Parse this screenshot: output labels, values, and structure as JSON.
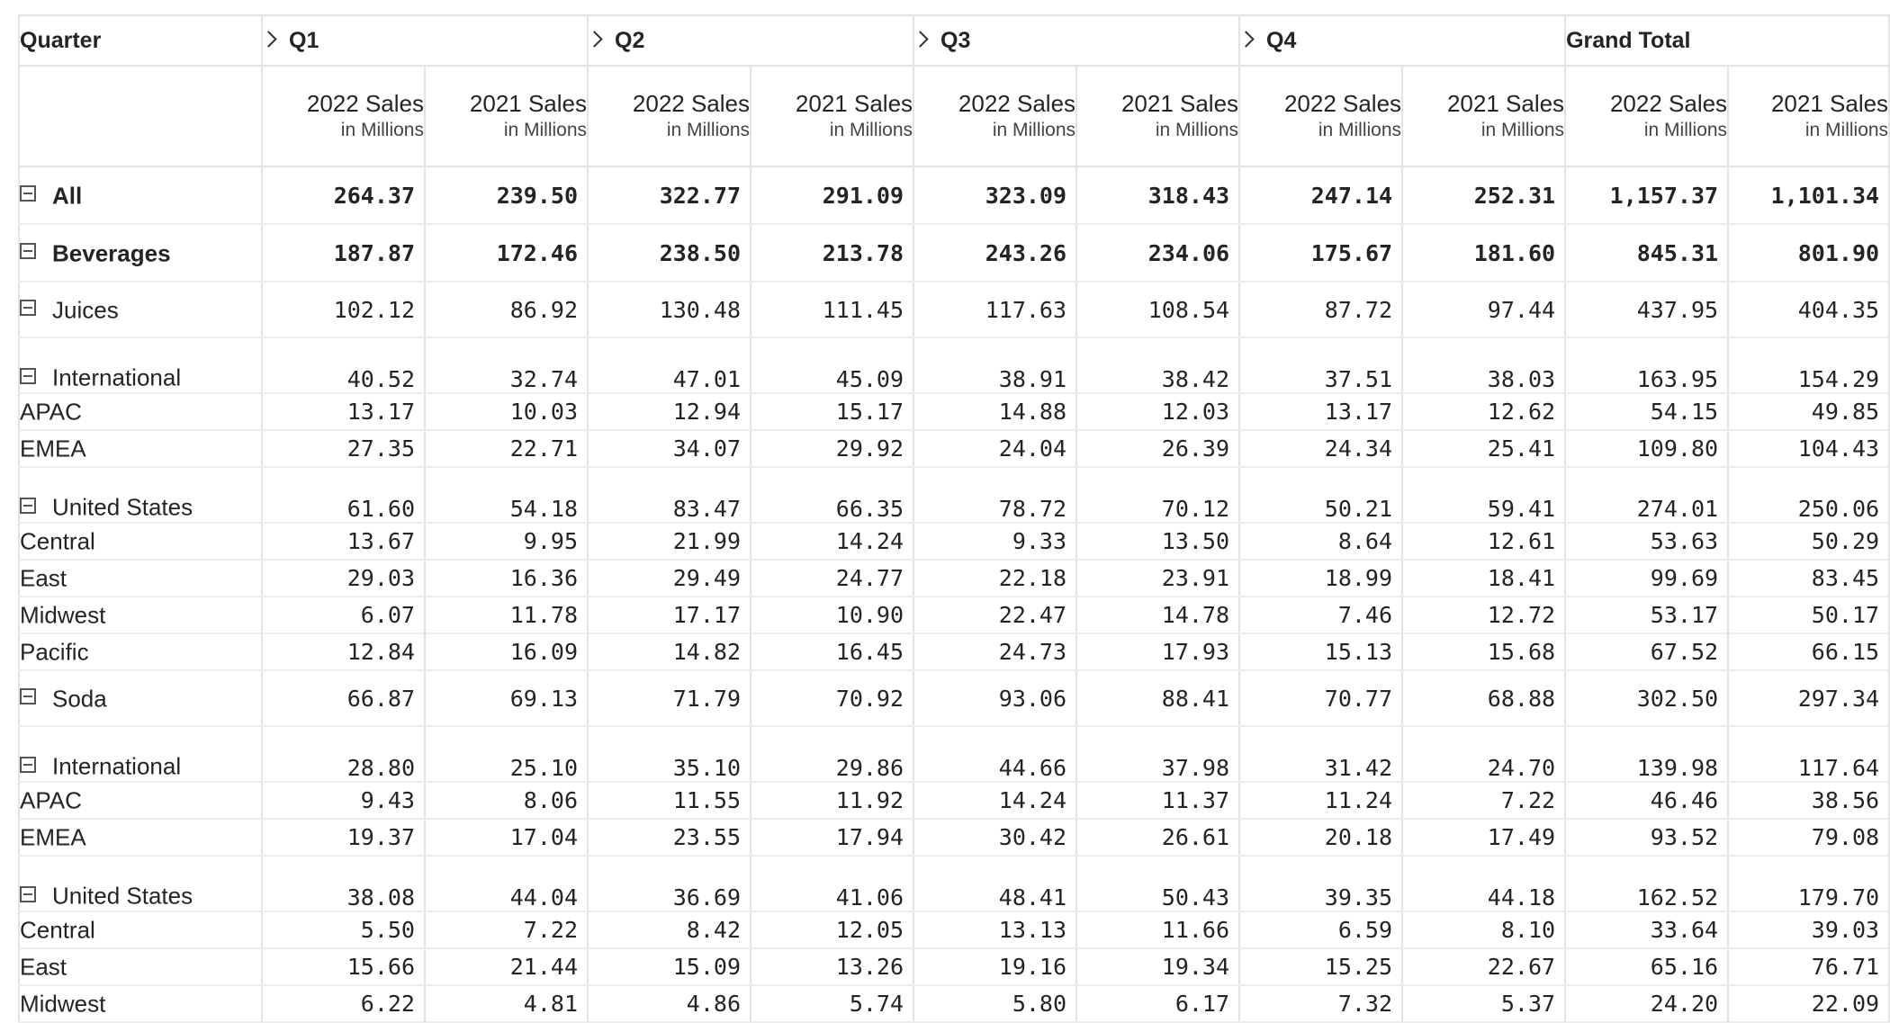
{
  "header": {
    "row_label": "Quarter",
    "columns": [
      "Q1",
      "Q2",
      "Q3",
      "Q4",
      "Grand Total"
    ],
    "measures": [
      {
        "line1": "2022 Sales",
        "line2": "in Millions"
      },
      {
        "line1": "2021 Sales",
        "line2": "in Millions"
      }
    ]
  },
  "rows": [
    {
      "label": "All",
      "level": 0,
      "bold": true,
      "collapsible": true,
      "values": [
        "264.37",
        "239.50",
        "322.77",
        "291.09",
        "323.09",
        "318.43",
        "247.14",
        "252.31",
        "1,157.37",
        "1,101.34"
      ]
    },
    {
      "label": "Beverages",
      "level": 1,
      "bold": true,
      "collapsible": true,
      "values": [
        "187.87",
        "172.46",
        "238.50",
        "213.78",
        "243.26",
        "234.06",
        "175.67",
        "181.60",
        "845.31",
        "801.90"
      ]
    },
    {
      "label": "Juices",
      "level": 2,
      "bold": false,
      "collapsible": true,
      "values": [
        "102.12",
        "86.92",
        "130.48",
        "111.45",
        "117.63",
        "108.54",
        "87.72",
        "97.44",
        "437.95",
        "404.35"
      ]
    },
    {
      "label": "International",
      "level": 3,
      "bold": false,
      "collapsible": true,
      "values": [
        "40.52",
        "32.74",
        "47.01",
        "45.09",
        "38.91",
        "38.42",
        "37.51",
        "38.03",
        "163.95",
        "154.29"
      ]
    },
    {
      "label": "APAC",
      "level": 4,
      "bold": false,
      "collapsible": false,
      "values": [
        "13.17",
        "10.03",
        "12.94",
        "15.17",
        "14.88",
        "12.03",
        "13.17",
        "12.62",
        "54.15",
        "49.85"
      ]
    },
    {
      "label": "EMEA",
      "level": 4,
      "bold": false,
      "collapsible": false,
      "values": [
        "27.35",
        "22.71",
        "34.07",
        "29.92",
        "24.04",
        "26.39",
        "24.34",
        "25.41",
        "109.80",
        "104.43"
      ]
    },
    {
      "label": "United States",
      "level": 3,
      "bold": false,
      "collapsible": true,
      "values": [
        "61.60",
        "54.18",
        "83.47",
        "66.35",
        "78.72",
        "70.12",
        "50.21",
        "59.41",
        "274.01",
        "250.06"
      ]
    },
    {
      "label": "Central",
      "level": 4,
      "bold": false,
      "collapsible": false,
      "values": [
        "13.67",
        "9.95",
        "21.99",
        "14.24",
        "9.33",
        "13.50",
        "8.64",
        "12.61",
        "53.63",
        "50.29"
      ]
    },
    {
      "label": "East",
      "level": 4,
      "bold": false,
      "collapsible": false,
      "values": [
        "29.03",
        "16.36",
        "29.49",
        "24.77",
        "22.18",
        "23.91",
        "18.99",
        "18.41",
        "99.69",
        "83.45"
      ]
    },
    {
      "label": "Midwest",
      "level": 4,
      "bold": false,
      "collapsible": false,
      "values": [
        "6.07",
        "11.78",
        "17.17",
        "10.90",
        "22.47",
        "14.78",
        "7.46",
        "12.72",
        "53.17",
        "50.17"
      ]
    },
    {
      "label": "Pacific",
      "level": 4,
      "bold": false,
      "collapsible": false,
      "values": [
        "12.84",
        "16.09",
        "14.82",
        "16.45",
        "24.73",
        "17.93",
        "15.13",
        "15.68",
        "67.52",
        "66.15"
      ]
    },
    {
      "label": "Soda",
      "level": 2,
      "bold": false,
      "collapsible": true,
      "values": [
        "66.87",
        "69.13",
        "71.79",
        "70.92",
        "93.06",
        "88.41",
        "70.77",
        "68.88",
        "302.50",
        "297.34"
      ]
    },
    {
      "label": "International",
      "level": 3,
      "bold": false,
      "collapsible": true,
      "values": [
        "28.80",
        "25.10",
        "35.10",
        "29.86",
        "44.66",
        "37.98",
        "31.42",
        "24.70",
        "139.98",
        "117.64"
      ]
    },
    {
      "label": "APAC",
      "level": 4,
      "bold": false,
      "collapsible": false,
      "values": [
        "9.43",
        "8.06",
        "11.55",
        "11.92",
        "14.24",
        "11.37",
        "11.24",
        "7.22",
        "46.46",
        "38.56"
      ]
    },
    {
      "label": "EMEA",
      "level": 4,
      "bold": false,
      "collapsible": false,
      "values": [
        "19.37",
        "17.04",
        "23.55",
        "17.94",
        "30.42",
        "26.61",
        "20.18",
        "17.49",
        "93.52",
        "79.08"
      ]
    },
    {
      "label": "United States",
      "level": 3,
      "bold": false,
      "collapsible": true,
      "values": [
        "38.08",
        "44.04",
        "36.69",
        "41.06",
        "48.41",
        "50.43",
        "39.35",
        "44.18",
        "162.52",
        "179.70"
      ]
    },
    {
      "label": "Central",
      "level": 4,
      "bold": false,
      "collapsible": false,
      "values": [
        "5.50",
        "7.22",
        "8.42",
        "12.05",
        "13.13",
        "11.66",
        "6.59",
        "8.10",
        "33.64",
        "39.03"
      ]
    },
    {
      "label": "East",
      "level": 4,
      "bold": false,
      "collapsible": false,
      "values": [
        "15.66",
        "21.44",
        "15.09",
        "13.26",
        "19.16",
        "19.34",
        "15.25",
        "22.67",
        "65.16",
        "76.71"
      ]
    },
    {
      "label": "Midwest",
      "level": 4,
      "bold": false,
      "collapsible": false,
      "values": [
        "6.22",
        "4.81",
        "4.86",
        "5.74",
        "5.80",
        "6.17",
        "7.32",
        "5.37",
        "24.20",
        "22.09"
      ]
    }
  ]
}
